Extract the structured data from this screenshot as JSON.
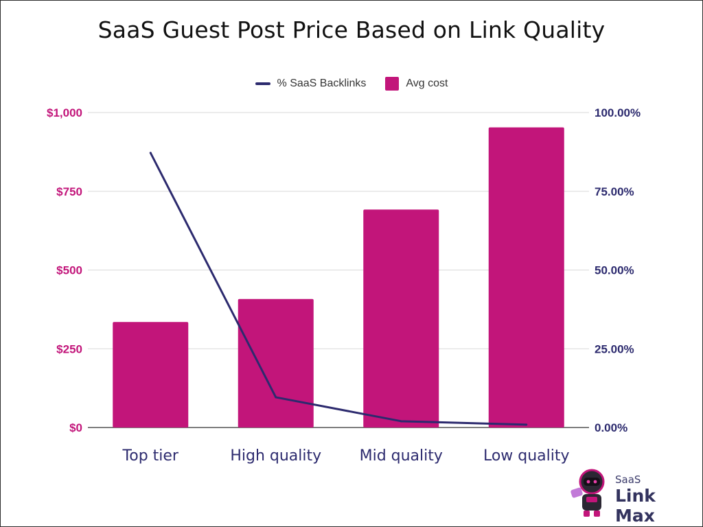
{
  "colors": {
    "bar": "#c2157a",
    "line": "#2c2a6e",
    "left_axis": "#c2157a",
    "right_axis": "#2c2a6e",
    "grid": "#d9d9d9",
    "category_text": "#2c2a6e"
  },
  "chart_data": {
    "type": "bar",
    "title": "SaaS Guest Post Price Based on Link Quality",
    "categories": [
      "Top tier",
      "High quality",
      "Mid quality",
      "Low quality"
    ],
    "series": [
      {
        "name": "Avg cost",
        "type": "bar",
        "axis": "left",
        "values": [
          335,
          408,
          692,
          953
        ]
      },
      {
        "name": "% SaaS Backlinks",
        "type": "line",
        "axis": "right",
        "values": [
          87.2,
          9.6,
          2.0,
          0.9
        ]
      }
    ],
    "y_left": {
      "ylim": [
        0,
        1000
      ],
      "ticks": [
        0,
        250,
        500,
        750,
        1000
      ],
      "tick_labels": [
        "$0",
        "$250",
        "$500",
        "$750",
        "$1,000"
      ]
    },
    "y_right": {
      "ylim": [
        0,
        100
      ],
      "ticks": [
        0,
        25,
        50,
        75,
        100
      ],
      "tick_labels": [
        "0.00%",
        "25.00%",
        "50.00%",
        "75.00%",
        "100.00%"
      ]
    },
    "legend": {
      "placement": "top",
      "entries": [
        "% SaaS Backlinks",
        "Avg cost"
      ]
    },
    "grid": true
  },
  "logo": {
    "line1": "SaaS",
    "line2": "Link Max"
  }
}
